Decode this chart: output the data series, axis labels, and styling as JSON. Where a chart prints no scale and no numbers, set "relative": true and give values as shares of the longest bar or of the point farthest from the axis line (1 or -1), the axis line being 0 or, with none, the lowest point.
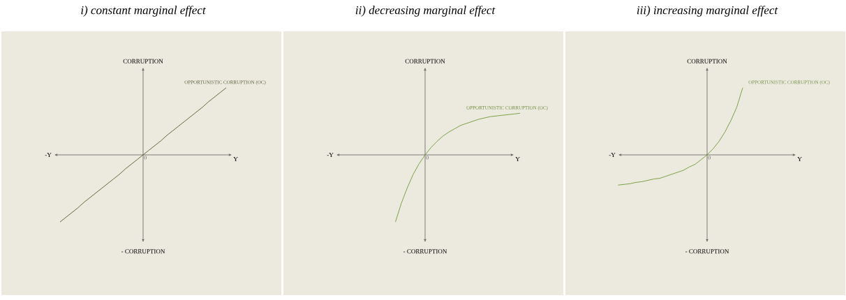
{
  "chart_data": [
    {
      "type": "line",
      "title": "i) constant marginal effect",
      "xlabel": "Y",
      "ylabel": "CORRUPTION",
      "annotations": [
        "-Y",
        "- CORRUPTION",
        "0"
      ],
      "relative": true,
      "marker": "none",
      "categories": [
        null,
        null,
        null,
        null,
        null,
        null,
        null,
        null,
        null,
        null,
        null,
        null,
        null,
        null,
        null,
        null,
        null,
        null,
        null,
        null,
        null,
        null,
        null,
        null,
        null,
        null,
        null,
        null,
        null,
        null,
        null,
        null,
        null
      ],
      "series": [
        {
          "name": "OPPORTUNISTIC CORRUPTION (OC)",
          "color": "#4f5f2a",
          "values": [
            null,
            null,
            -1,
            -0.93,
            -0.86,
            -0.79,
            -0.71,
            -0.64,
            -0.57,
            -0.5,
            -0.43,
            -0.36,
            -0.29,
            -0.21,
            -0.14,
            -0.07,
            0,
            0.07,
            0.14,
            0.21,
            0.29,
            0.36,
            0.43,
            0.5,
            0.57,
            0.64,
            0.71,
            0.79,
            0.86,
            0.93,
            1,
            null,
            null
          ]
        }
      ]
    },
    {
      "type": "line",
      "title": "ii) decreasing marginal effect",
      "xlabel": "Y",
      "ylabel": "CORRUPTION",
      "annotations": [
        "-Y",
        "- CORRUPTION",
        "0"
      ],
      "relative": true,
      "marker": "none",
      "categories": [
        null,
        null,
        null,
        null,
        null,
        null,
        null,
        null,
        null,
        null,
        null,
        null,
        null,
        null,
        null,
        null,
        null,
        null,
        null,
        null,
        null,
        null,
        null,
        null,
        null,
        null,
        null,
        null,
        null,
        null,
        null,
        null,
        null
      ],
      "series": [
        {
          "name": "OPPORTUNISTIC CORRUPTION (OC)",
          "color": "#6f9a35",
          "values": [
            null,
            null,
            null,
            null,
            null,
            null,
            null,
            null,
            null,
            null,
            null,
            -1,
            -0.72,
            -0.49,
            -0.29,
            -0.13,
            0,
            0.11,
            0.2,
            0.28,
            0.34,
            0.39,
            0.44,
            0.47,
            0.5,
            0.53,
            0.55,
            0.57,
            0.58,
            0.59,
            0.6,
            0.61,
            0.62
          ]
        }
      ]
    },
    {
      "type": "line",
      "title": "iii) increasing marginal effect",
      "xlabel": "Y",
      "ylabel": "CORRUPTION",
      "annotations": [
        "-Y",
        "- CORRUPTION",
        "0"
      ],
      "relative": true,
      "marker": "none",
      "categories": [
        null,
        null,
        null,
        null,
        null,
        null,
        null,
        null,
        null,
        null,
        null,
        null,
        null,
        null,
        null,
        null,
        null,
        null,
        null,
        null,
        null,
        null,
        null,
        null,
        null,
        null,
        null,
        null,
        null,
        null,
        null,
        null,
        null
      ],
      "series": [
        {
          "name": "OPPORTUNISTIC CORRUPTION (OC)",
          "color": "#6f9a35",
          "values": [
            null,
            -0.45,
            -0.44,
            -0.43,
            -0.41,
            -0.4,
            -0.38,
            -0.36,
            -0.35,
            -0.32,
            -0.29,
            -0.26,
            -0.23,
            -0.18,
            -0.14,
            -0.07,
            0,
            0.09,
            0.2,
            0.34,
            0.51,
            0.71,
            1,
            null,
            null,
            null,
            null,
            null,
            null,
            null,
            null,
            null,
            null
          ]
        }
      ]
    }
  ]
}
